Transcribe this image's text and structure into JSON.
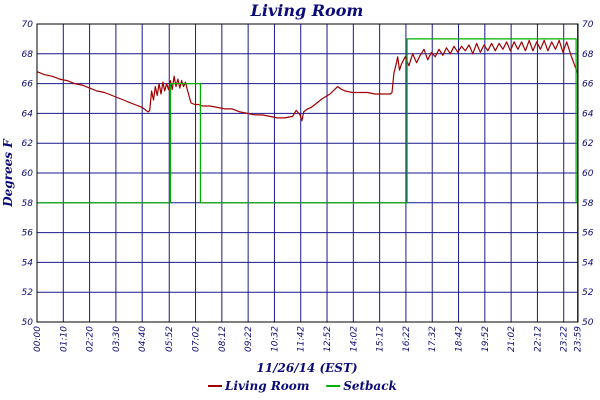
{
  "chart_data": {
    "type": "line",
    "title": "Living Room",
    "xlabel": "11/26/14 (EST)",
    "ylabel": "Degrees F",
    "ylim": [
      50,
      70
    ],
    "yticks": [
      50,
      52,
      54,
      56,
      58,
      60,
      62,
      64,
      66,
      68,
      70
    ],
    "xlim_minutes": [
      0,
      1440
    ],
    "xtick_labels": [
      "00:00",
      "01:10",
      "02:20",
      "03:30",
      "04:40",
      "05:52",
      "07:02",
      "08:12",
      "09:22",
      "10:32",
      "11:42",
      "12:52",
      "14:02",
      "15:12",
      "16:22",
      "17:32",
      "18:42",
      "19:52",
      "21:02",
      "22:12",
      "23:22",
      "23:59"
    ],
    "xtick_minutes": [
      0,
      70,
      140,
      210,
      280,
      352,
      422,
      492,
      562,
      632,
      702,
      772,
      842,
      912,
      982,
      1052,
      1122,
      1192,
      1262,
      1332,
      1402,
      1439
    ],
    "grid": true,
    "series": [
      {
        "name": "Living Room",
        "color": "#a00000",
        "x": [
          0,
          20,
          40,
          60,
          80,
          100,
          120,
          140,
          160,
          180,
          200,
          220,
          240,
          260,
          280,
          290,
          296,
          300,
          305,
          310,
          315,
          320,
          325,
          330,
          335,
          340,
          345,
          350,
          355,
          360,
          365,
          370,
          375,
          380,
          385,
          390,
          395,
          400,
          410,
          420,
          430,
          440,
          460,
          480,
          500,
          520,
          540,
          560,
          580,
          600,
          620,
          640,
          660,
          680,
          690,
          700,
          705,
          710,
          720,
          730,
          740,
          760,
          780,
          800,
          812,
          820,
          840,
          860,
          880,
          900,
          920,
          930,
          940,
          945,
          950,
          955,
          960,
          965,
          970,
          980,
          990,
          1000,
          1010,
          1020,
          1030,
          1040,
          1050,
          1060,
          1070,
          1080,
          1090,
          1100,
          1110,
          1120,
          1130,
          1140,
          1150,
          1160,
          1170,
          1180,
          1190,
          1200,
          1210,
          1220,
          1230,
          1240,
          1250,
          1260,
          1270,
          1280,
          1290,
          1300,
          1310,
          1320,
          1330,
          1340,
          1350,
          1360,
          1370,
          1380,
          1390,
          1400,
          1410,
          1420,
          1430,
          1439
        ],
        "values": [
          66.8,
          66.6,
          66.5,
          66.3,
          66.2,
          66.0,
          65.9,
          65.7,
          65.5,
          65.4,
          65.2,
          65.0,
          64.8,
          64.6,
          64.4,
          64.2,
          64.1,
          64.2,
          65.5,
          64.9,
          65.8,
          65.2,
          66.0,
          65.3,
          66.1,
          65.5,
          66.0,
          65.6,
          66.2,
          65.6,
          66.5,
          65.8,
          66.3,
          65.7,
          66.2,
          65.8,
          66.1,
          65.6,
          64.7,
          64.6,
          64.6,
          64.5,
          64.5,
          64.4,
          64.3,
          64.3,
          64.1,
          64.0,
          63.9,
          63.9,
          63.8,
          63.7,
          63.7,
          63.8,
          64.2,
          63.9,
          63.5,
          64.1,
          64.3,
          64.4,
          64.6,
          65.0,
          65.3,
          65.8,
          65.6,
          65.5,
          65.4,
          65.4,
          65.4,
          65.3,
          65.3,
          65.3,
          65.3,
          65.4,
          66.7,
          67.2,
          67.8,
          66.9,
          67.3,
          67.8,
          67.2,
          68.0,
          67.4,
          67.9,
          68.3,
          67.6,
          68.1,
          67.8,
          68.3,
          67.9,
          68.4,
          68.0,
          68.5,
          68.1,
          68.5,
          68.2,
          68.6,
          68.0,
          68.7,
          68.1,
          68.6,
          68.2,
          68.7,
          68.2,
          68.7,
          68.3,
          68.8,
          68.2,
          68.8,
          68.3,
          68.8,
          68.2,
          68.9,
          68.2,
          68.8,
          68.3,
          68.9,
          68.2,
          68.8,
          68.3,
          68.9,
          68.1,
          68.8,
          68.0,
          67.3,
          66.7
        ]
      },
      {
        "name": "Setback",
        "color": "#00b000",
        "x": [
          0,
          355,
          355,
          435,
          435,
          985,
          985,
          1435,
          1435,
          1439
        ],
        "values": [
          58,
          58,
          66,
          66,
          58,
          58,
          69,
          69,
          58,
          58
        ]
      }
    ],
    "legend_position": "bottom-center"
  }
}
